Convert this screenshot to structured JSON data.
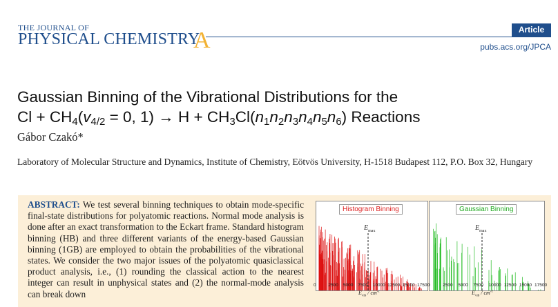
{
  "header": {
    "journal_line1": "THE JOURNAL OF",
    "journal_line2": "PHYSICAL CHEMISTRY",
    "journal_letter": "A",
    "badge": "Article",
    "link": "pubs.acs.org/JPCA"
  },
  "paper": {
    "title_line1": "Gaussian Binning of the Vibrational Distributions for the",
    "title_line2_a": "Cl + CH",
    "title_line2_sub1": "4",
    "title_line2_b": "(",
    "title_line2_v": "v",
    "title_line2_sub2": "4/2",
    "title_line2_c": " = 0, 1) → H + CH",
    "title_line2_sub3": "3",
    "title_line2_d": "Cl(",
    "title_line2_n1": "n",
    "title_line2_s1": "1",
    "title_line2_n2": "n",
    "title_line2_s2": "2",
    "title_line2_n3": "n",
    "title_line2_s3": "3",
    "title_line2_n4": "n",
    "title_line2_s4": "4",
    "title_line2_n5": "n",
    "title_line2_s5": "5",
    "title_line2_n6": "n",
    "title_line2_s6": "6",
    "title_line2_e": ") Reactions",
    "author": "Gábor Czakó*",
    "affiliation": "Laboratory of Molecular Structure and Dynamics, Institute of Chemistry, Eötvös University, H-1518 Budapest 112, P.O. Box 32, Hungary"
  },
  "abstract": {
    "label": "ABSTRACT:",
    "text": " We test several binning techniques to obtain mode-specific final-state distributions for polyatomic reactions. Normal mode analysis is done after an exact transformation to the Eckart frame. Standard histogram binning (HB) and three different variants of the energy-based Gaussian binning (1GB) are employed to obtain the probabilities of the vibrational states. We consider the two major issues of the polyatomic quasiclassical product analysis, i.e., (1) rounding the classical action to the nearest integer can result in unphysical states and (2) the normal-mode analysis can break down"
  },
  "figure": {
    "panel1_title": "Histogram Binning",
    "panel2_title": "Gaussian Binning",
    "emax_label": "E",
    "emax_sub": "max",
    "xaxis_label": "E",
    "xaxis_sub": "vib",
    "xaxis_unit": " / cm",
    "xaxis_sup": "-1",
    "ticks": [
      "0",
      "2500",
      "5000",
      "7500",
      "10000",
      "12500",
      "15000",
      "17500"
    ],
    "colors": {
      "histogram": "#dd1111",
      "gaussian": "#22bb22",
      "emax_line": "#222222"
    }
  }
}
